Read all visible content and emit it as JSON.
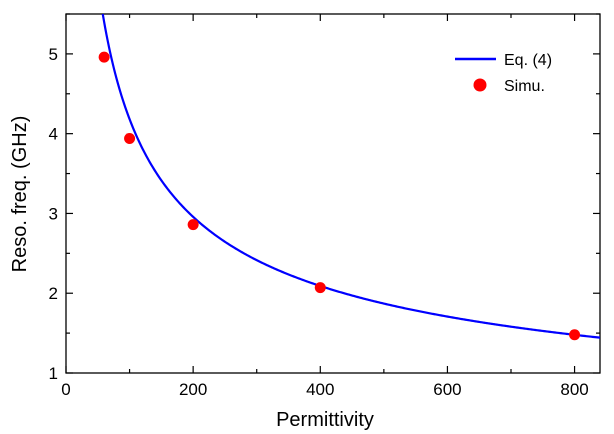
{
  "chart_data": {
    "type": "line",
    "xlabel": "Permittivity",
    "ylabel": "Reso. freq. (GHz)",
    "xlim": [
      0,
      840
    ],
    "ylim": [
      1,
      5.5
    ],
    "xticks": [
      0,
      200,
      400,
      600,
      800
    ],
    "yticks": [
      1,
      2,
      3,
      4,
      5
    ],
    "x_minor_step": 100,
    "y_minor_step": 0.5,
    "grid": false,
    "legend_position": "top-right",
    "series": [
      {
        "name": "Eq. (4)",
        "kind": "line",
        "color": "#0000ff",
        "formula": "y = 41.82 / sqrt(x)",
        "coefficient": 41.82,
        "x": [
          57.8,
          60,
          70,
          80,
          90,
          100,
          120,
          140,
          160,
          180,
          200,
          250,
          300,
          350,
          400,
          450,
          500,
          550,
          600,
          650,
          700,
          750,
          800,
          840
        ],
        "values": [
          5.5,
          5.4,
          5.0,
          4.68,
          4.41,
          4.18,
          3.82,
          3.53,
          3.31,
          3.12,
          2.96,
          2.64,
          2.41,
          2.24,
          2.09,
          1.97,
          1.87,
          1.78,
          1.71,
          1.64,
          1.58,
          1.53,
          1.48,
          1.44
        ]
      },
      {
        "name": "Simu.",
        "kind": "scatter",
        "color": "#ff0000",
        "x": [
          60,
          100,
          200,
          400,
          800
        ],
        "values": [
          4.96,
          3.94,
          2.86,
          2.07,
          1.48
        ]
      }
    ]
  }
}
